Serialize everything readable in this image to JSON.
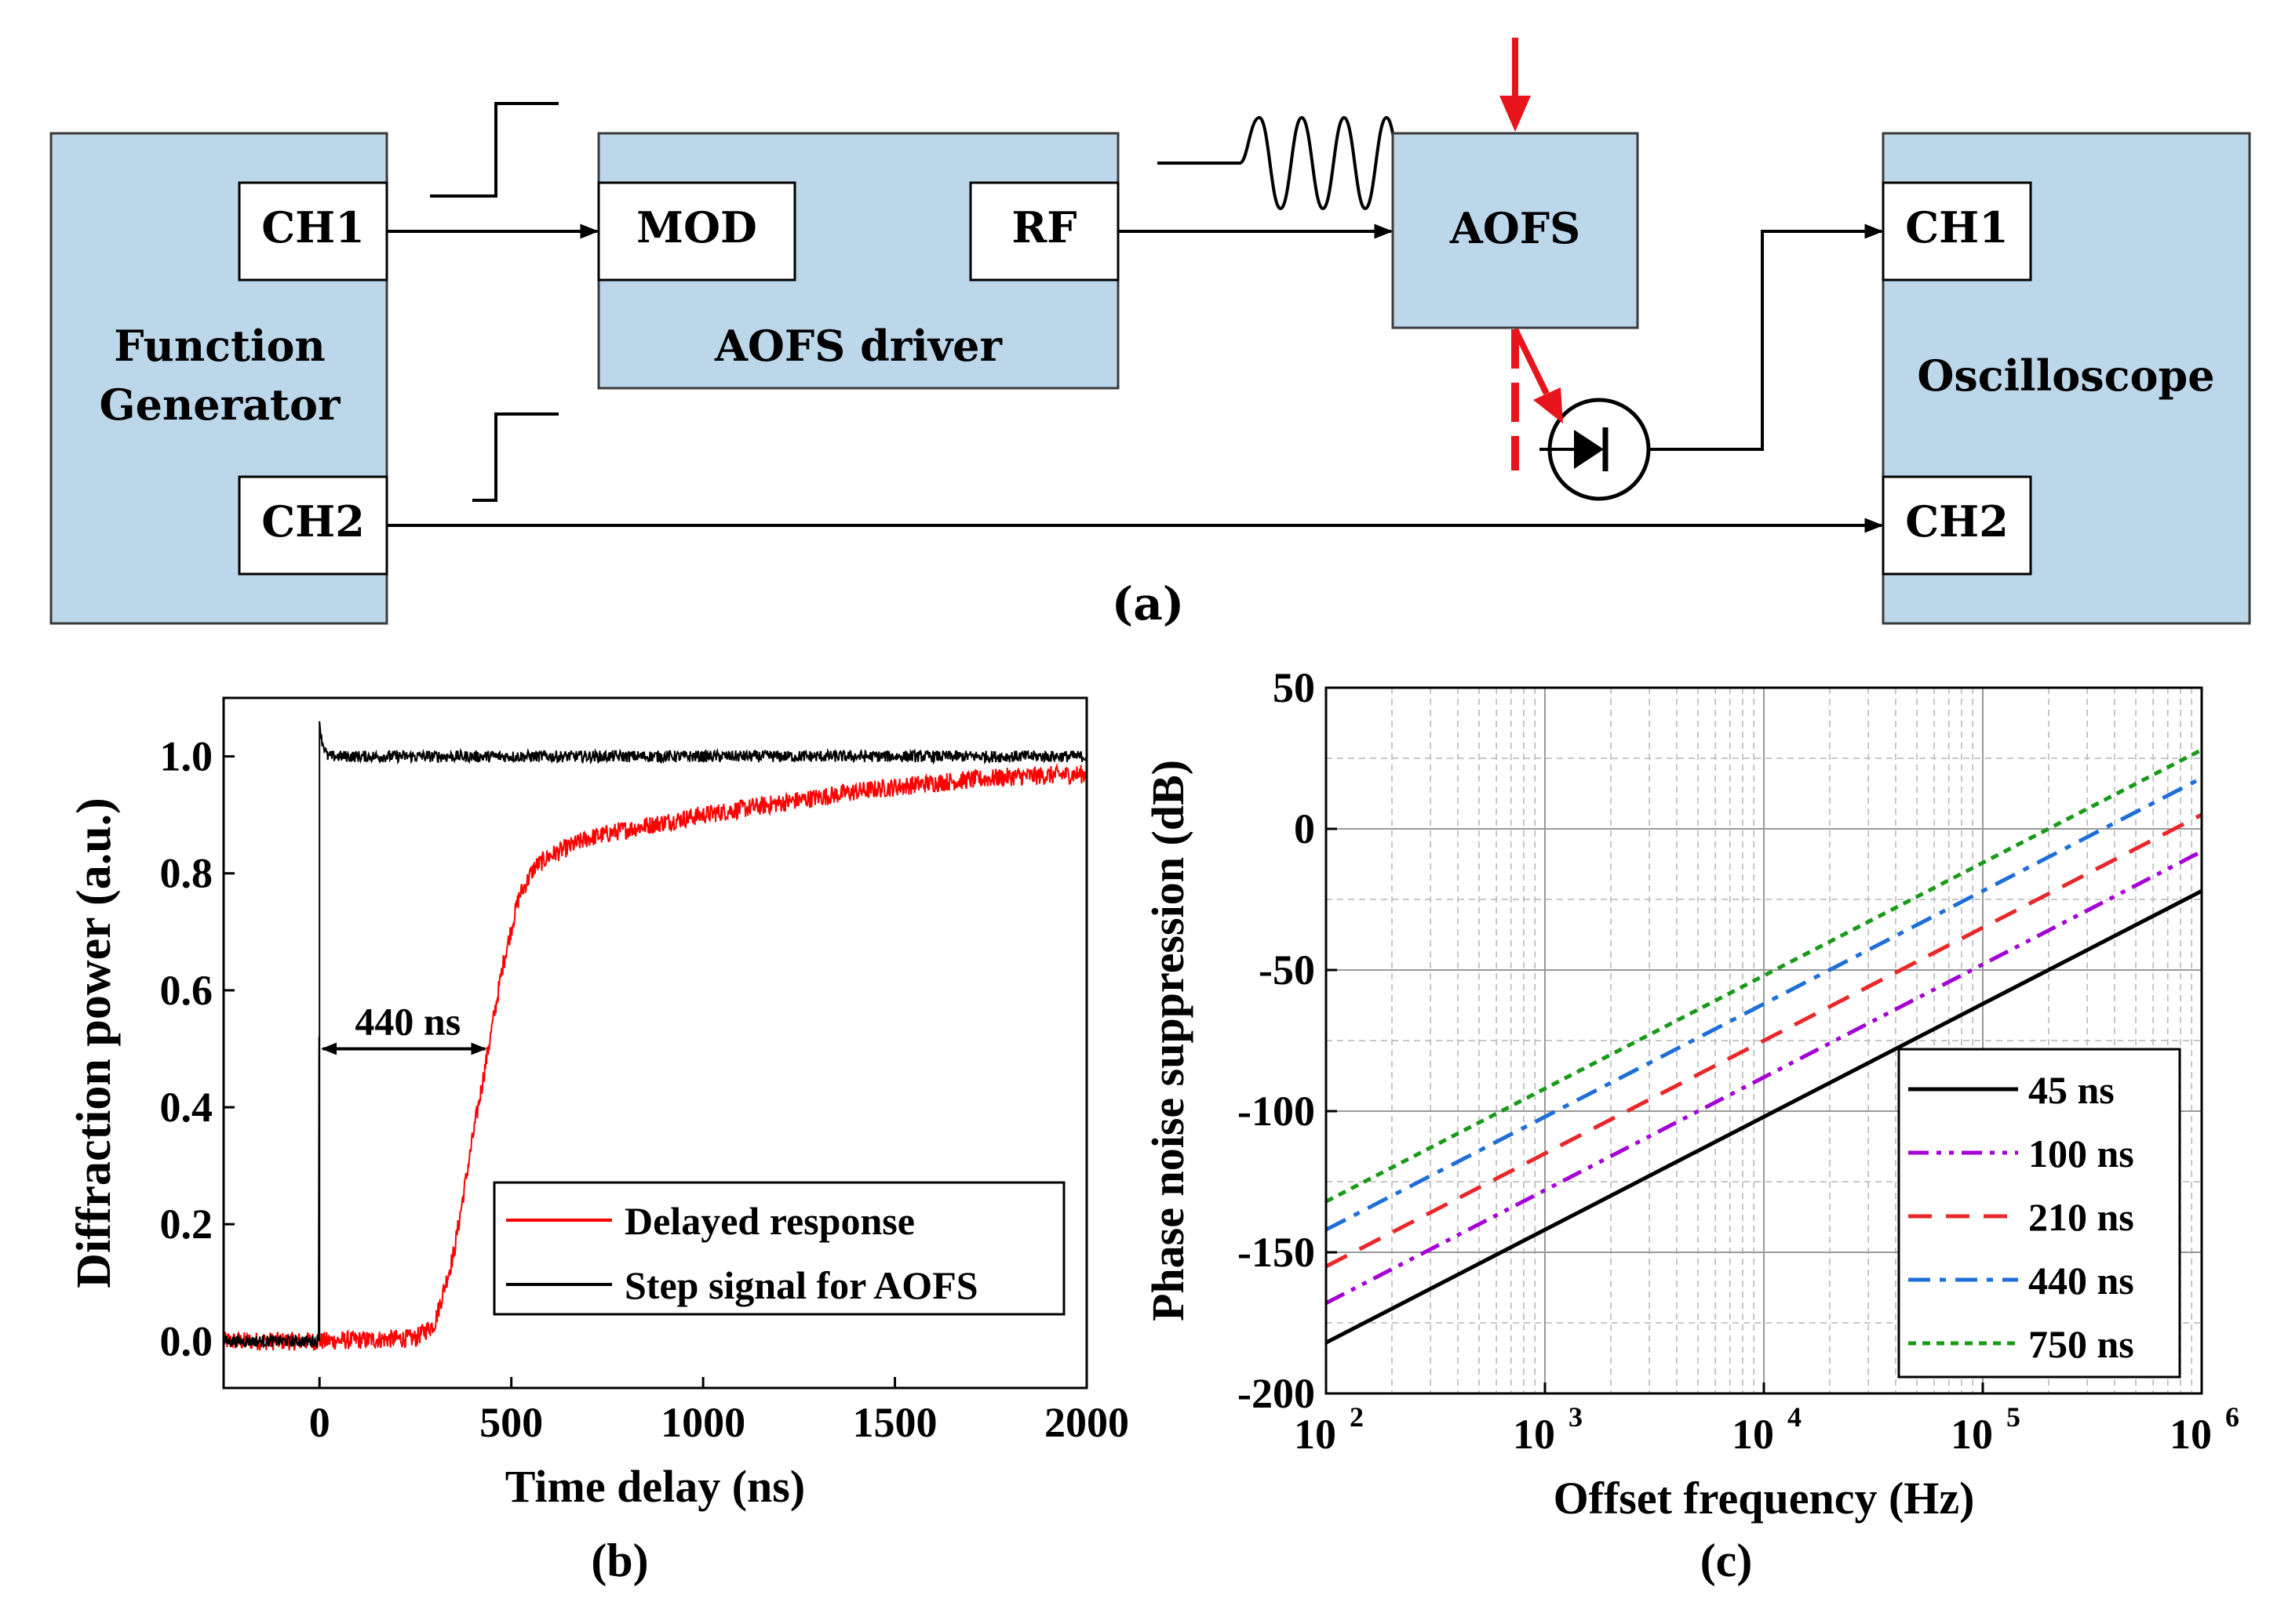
{
  "diagram": {
    "panel_label": "(a)",
    "function_generator": {
      "label_line1": "Function",
      "label_line2": "Generator",
      "ch1": "CH1",
      "ch2": "CH2"
    },
    "aofs_driver": {
      "label": "AOFS driver",
      "mod": "MOD",
      "rf": "RF"
    },
    "aofs": {
      "label": "AOFS"
    },
    "oscilloscope": {
      "label": "Oscilloscope",
      "ch1": "CH1",
      "ch2": "CH2"
    },
    "colors": {
      "box_fill": "#bcd6ea",
      "beam": "#e8141c"
    }
  },
  "chart_data": [
    {
      "panel_label": "(b)",
      "type": "line",
      "title": "",
      "xlabel": "Time delay (ns)",
      "ylabel": "Diffraction power (a.u.)",
      "xlim": [
        -250,
        2000
      ],
      "ylim": [
        -0.08,
        1.1
      ],
      "xticks": [
        0,
        500,
        1000,
        1500,
        2000
      ],
      "xtick_labels": [
        "0",
        "500",
        "1000",
        "1500",
        "2000"
      ],
      "yticks": [
        0.0,
        0.2,
        0.4,
        0.6,
        0.8,
        1.0
      ],
      "ytick_labels": [
        "0.0",
        "0.2",
        "0.4",
        "0.6",
        "0.8",
        "1.0"
      ],
      "annotation": {
        "text": "440 ns",
        "x_start": 0,
        "x_end": 440,
        "y": 0.5
      },
      "legend": {
        "placement": "bottom-right"
      },
      "series": [
        {
          "name": "Delayed response",
          "color": "#ff0000",
          "noise": 0.016,
          "x": [
            -250,
            0,
            250,
            300,
            350,
            400,
            440,
            480,
            520,
            560,
            600,
            700,
            800,
            1000,
            1200,
            1400,
            1600,
            1800,
            2000
          ],
          "y": [
            0.0,
            0.0,
            0.005,
            0.03,
            0.15,
            0.35,
            0.5,
            0.65,
            0.76,
            0.81,
            0.83,
            0.86,
            0.875,
            0.9,
            0.92,
            0.94,
            0.955,
            0.965,
            0.97
          ]
        },
        {
          "name": "Step signal for AOFS",
          "color": "#000000",
          "noise": 0.01,
          "x": [
            -250,
            -2,
            0,
            5,
            20,
            60,
            2000
          ],
          "y": [
            0.0,
            0.0,
            1.06,
            1.03,
            1.0,
            1.0,
            1.0
          ]
        }
      ]
    },
    {
      "panel_label": "(c)",
      "type": "line",
      "title": "",
      "xlabel": "Offset frequency (Hz)",
      "ylabel": "Phase noise suppression (dB)",
      "xscale": "log",
      "xlim": [
        100,
        1000000
      ],
      "ylim": [
        -200,
        50
      ],
      "xtick_base": "10",
      "xtick_exponents": [
        "2",
        "3",
        "4",
        "5",
        "6"
      ],
      "yticks": [
        -200,
        -150,
        -100,
        -50,
        0,
        50
      ],
      "ytick_labels": [
        "-200",
        "-150",
        "-100",
        "-50",
        "0",
        "50"
      ],
      "grid": true,
      "legend": {
        "placement": "bottom-right"
      },
      "series": [
        {
          "name": "45 ns",
          "color": "#000000",
          "dash": "solid",
          "x": [
            100,
            1000000
          ],
          "y": [
            -182,
            -22
          ]
        },
        {
          "name": "100 ns",
          "color": "#a400d6",
          "dash": "dashdotdot",
          "x": [
            100,
            1000000
          ],
          "y": [
            -168,
            -8
          ]
        },
        {
          "name": "210 ns",
          "color": "#e8282a",
          "dash": "dashed",
          "x": [
            100,
            1000000
          ],
          "y": [
            -155,
            5
          ]
        },
        {
          "name": "440 ns",
          "color": "#1f6fd6",
          "dash": "dashdot",
          "x": [
            100,
            1000000
          ],
          "y": [
            -142,
            18
          ]
        },
        {
          "name": "750 ns",
          "color": "#1a9a1a",
          "dash": "dotted",
          "x": [
            100,
            1000000
          ],
          "y": [
            -132,
            28
          ]
        }
      ]
    }
  ]
}
